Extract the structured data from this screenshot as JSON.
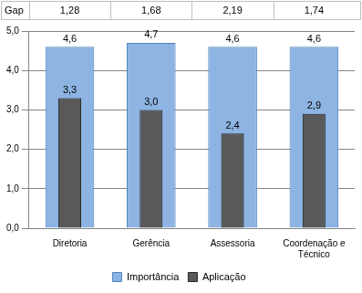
{
  "chart_data": {
    "type": "bar",
    "categories": [
      "Diretoria",
      "Gerência",
      "Assessoria",
      "Coordenação e Técnico"
    ],
    "series": [
      {
        "name": "Importância",
        "color": "#8db4e2",
        "values": [
          4.6,
          4.7,
          4.6,
          4.6
        ],
        "value_labels": [
          "4,6",
          "4,7",
          "4,6",
          "4,6"
        ]
      },
      {
        "name": "Aplicação",
        "color": "#595959",
        "values": [
          3.3,
          3.0,
          2.4,
          2.9
        ],
        "value_labels": [
          "3,3",
          "3,0",
          "2,4",
          "2,9"
        ]
      }
    ],
    "gap": {
      "label": "Gap",
      "values": [
        1.28,
        1.68,
        2.19,
        1.74
      ],
      "value_labels": [
        "1,28",
        "1,68",
        "2,19",
        "1,74"
      ]
    },
    "ylim": [
      0,
      5
    ],
    "yticks": [
      {
        "value": 0,
        "label": "0,0"
      },
      {
        "value": 1,
        "label": "1,0"
      },
      {
        "value": 2,
        "label": "2,0"
      },
      {
        "value": 3,
        "label": "3,0"
      },
      {
        "value": 4,
        "label": "4,0"
      },
      {
        "value": 5,
        "label": "5,0"
      }
    ],
    "grid": true,
    "legend": "bottom",
    "data_labels": true
  }
}
